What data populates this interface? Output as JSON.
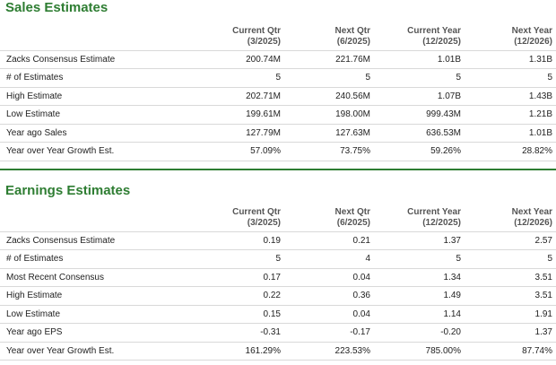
{
  "sales": {
    "title": "Sales Estimates",
    "headers": [
      {
        "line1": "Current Qtr",
        "line2": "(3/2025)"
      },
      {
        "line1": "Next Qtr",
        "line2": "(6/2025)"
      },
      {
        "line1": "Current Year",
        "line2": "(12/2025)"
      },
      {
        "line1": "Next Year",
        "line2": "(12/2026)"
      }
    ],
    "rows": [
      {
        "label": "Zacks Consensus Estimate",
        "values": [
          "200.74M",
          "221.76M",
          "1.01B",
          "1.31B"
        ]
      },
      {
        "label": "# of Estimates",
        "values": [
          "5",
          "5",
          "5",
          "5"
        ]
      },
      {
        "label": "High Estimate",
        "values": [
          "202.71M",
          "240.56M",
          "1.07B",
          "1.43B"
        ]
      },
      {
        "label": "Low Estimate",
        "values": [
          "199.61M",
          "198.00M",
          "999.43M",
          "1.21B"
        ]
      },
      {
        "label": "Year ago Sales",
        "values": [
          "127.79M",
          "127.63M",
          "636.53M",
          "1.01B"
        ]
      },
      {
        "label": "Year over Year Growth Est.",
        "values": [
          "57.09%",
          "73.75%",
          "59.26%",
          "28.82%"
        ]
      }
    ]
  },
  "earnings": {
    "title": "Earnings Estimates",
    "headers": [
      {
        "line1": "Current Qtr",
        "line2": "(3/2025)"
      },
      {
        "line1": "Next Qtr",
        "line2": "(6/2025)"
      },
      {
        "line1": "Current Year",
        "line2": "(12/2025)"
      },
      {
        "line1": "Next Year",
        "line2": "(12/2026)"
      }
    ],
    "rows": [
      {
        "label": "Zacks Consensus Estimate",
        "values": [
          "0.19",
          "0.21",
          "1.37",
          "2.57"
        ]
      },
      {
        "label": "# of Estimates",
        "values": [
          "5",
          "4",
          "5",
          "5"
        ]
      },
      {
        "label": "Most Recent Consensus",
        "values": [
          "0.17",
          "0.04",
          "1.34",
          "3.51"
        ]
      },
      {
        "label": "High Estimate",
        "values": [
          "0.22",
          "0.36",
          "1.49",
          "3.51"
        ]
      },
      {
        "label": "Low Estimate",
        "values": [
          "0.15",
          "0.04",
          "1.14",
          "1.91"
        ]
      },
      {
        "label": "Year ago EPS",
        "values": [
          "-0.31",
          "-0.17",
          "-0.20",
          "1.37"
        ]
      },
      {
        "label": "Year over Year Growth Est.",
        "values": [
          "161.29%",
          "223.53%",
          "785.00%",
          "87.74%"
        ]
      }
    ]
  },
  "colors": {
    "title_green": "#2e7d32",
    "divider_green": "#2e7d32",
    "row_border": "#d9d9d9"
  }
}
